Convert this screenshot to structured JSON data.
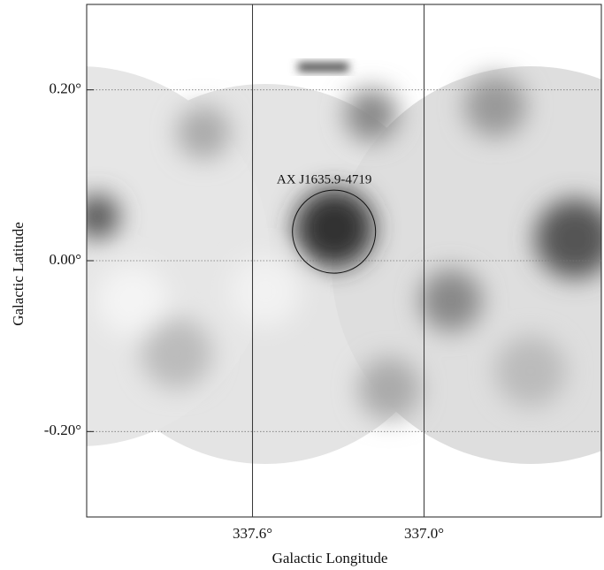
{
  "chart_data": {
    "type": "image",
    "xlabel": "Galactic Longitude",
    "ylabel": "Galactic Latitude",
    "xlim": [
      338.18,
      336.38
    ],
    "ylim": [
      -0.3,
      0.3
    ],
    "xticks": [
      {
        "value": 337.6,
        "label": "337.6°"
      },
      {
        "value": 337.0,
        "label": "337.0°"
      }
    ],
    "yticks": [
      {
        "value": 0.2,
        "label": "0.20°"
      },
      {
        "value": 0.0,
        "label": "0.00°"
      },
      {
        "value": -0.2,
        "label": "-0.20°"
      }
    ],
    "annotations": [
      {
        "text": "AX J1635.9-4719",
        "x": 337.315,
        "y": 0.034
      }
    ]
  }
}
